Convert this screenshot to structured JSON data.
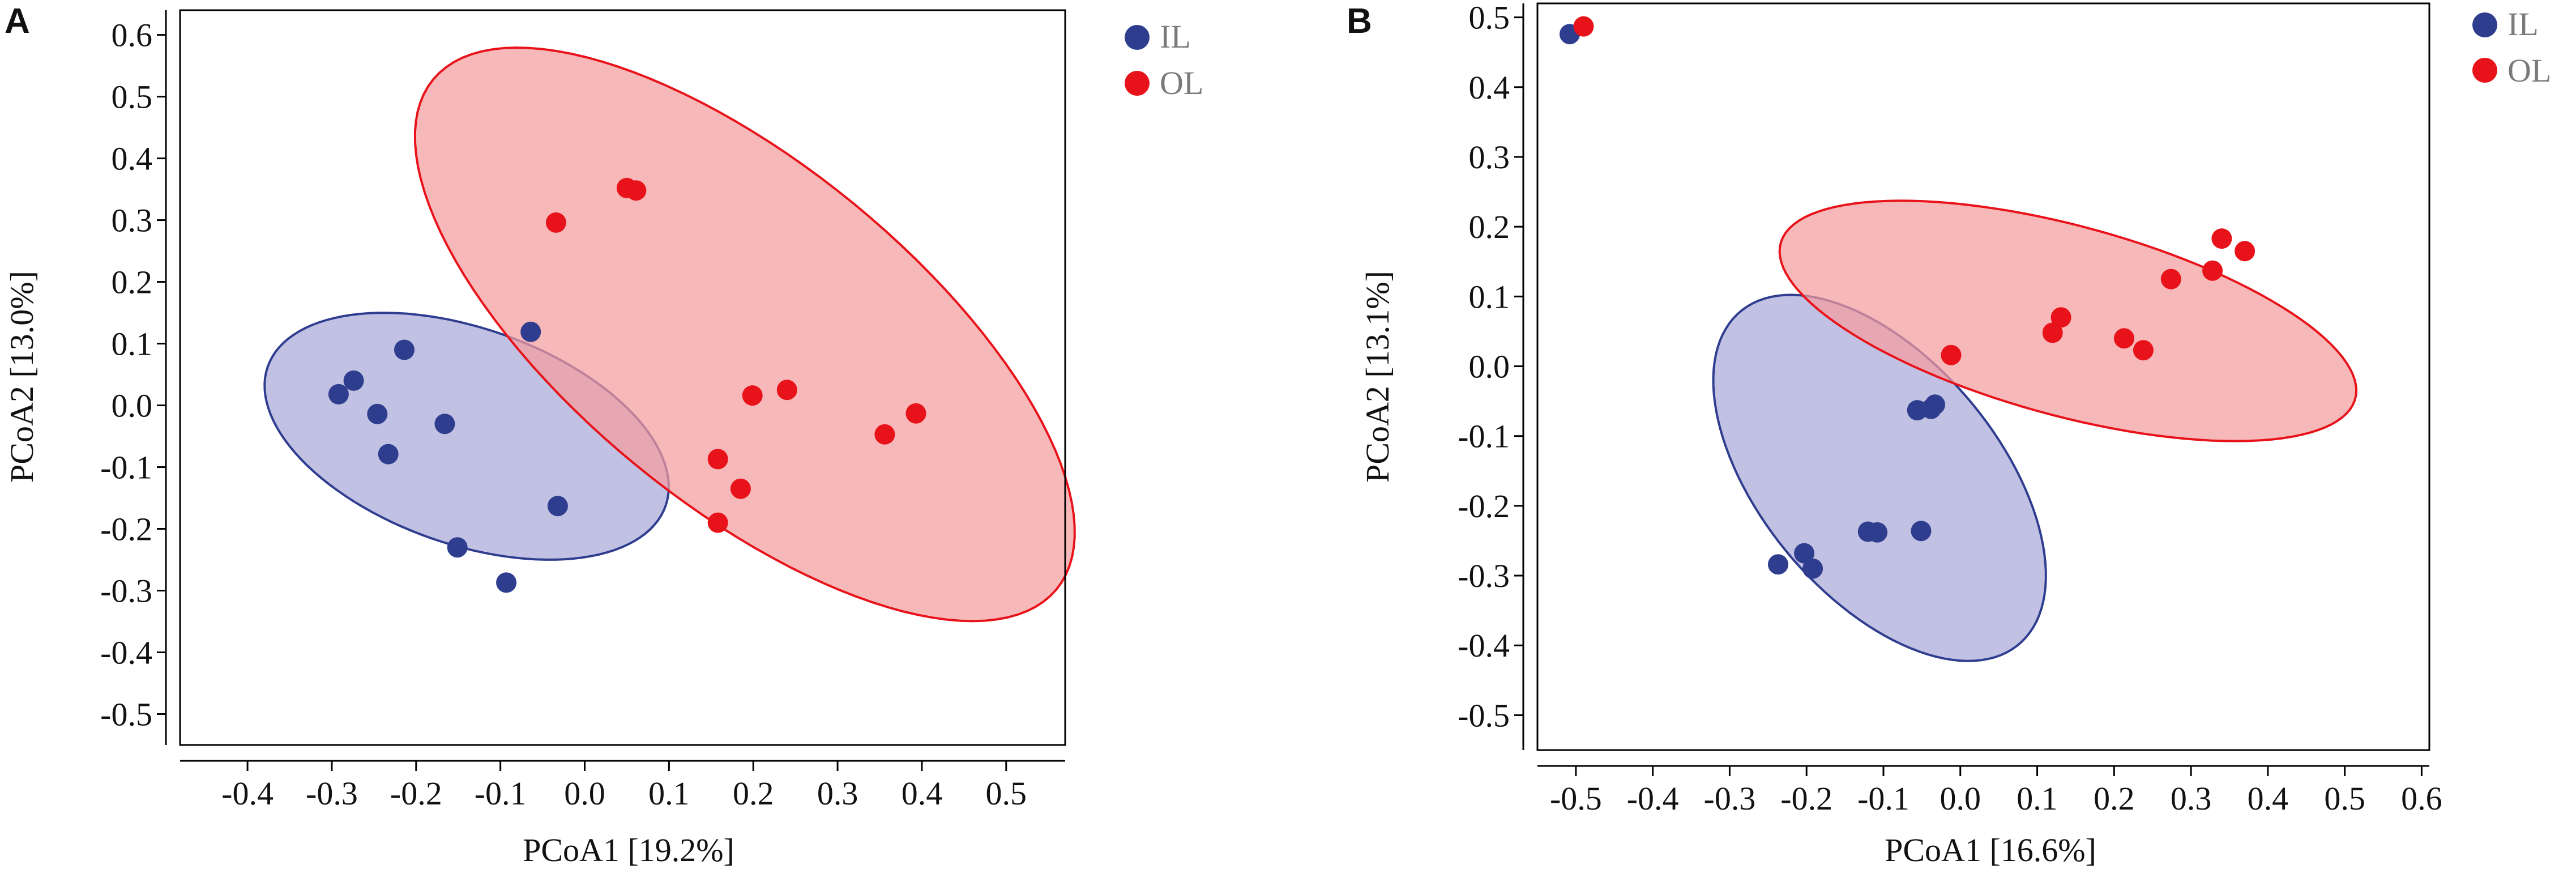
{
  "chart_data": [
    {
      "panel": "A",
      "type": "scatter",
      "xlabel": "PCoA1 [19.2%]",
      "ylabel": "PCoA2 [13.0%]",
      "xlim": [
        -0.48,
        0.57
      ],
      "ylim": [
        -0.55,
        0.64
      ],
      "xticks": [
        -0.4,
        -0.3,
        -0.2,
        -0.1,
        0,
        0.1,
        0.2,
        0.3,
        0.4,
        0.5
      ],
      "yticks": [
        -0.5,
        -0.4,
        -0.3,
        -0.2,
        -0.1,
        0,
        0.1,
        0.2,
        0.3,
        0.4,
        0.5,
        0.6
      ],
      "legend_position": "top-right-outside",
      "series": [
        {
          "name": "IL",
          "color": "#2f3d8f",
          "fill": "#a9a9d9",
          "points": [
            {
              "x": -0.292,
              "y": 0.018
            },
            {
              "x": -0.274,
              "y": 0.04
            },
            {
              "x": -0.246,
              "y": -0.014
            },
            {
              "x": -0.214,
              "y": 0.09
            },
            {
              "x": -0.233,
              "y": -0.079
            },
            {
              "x": -0.166,
              "y": -0.03
            },
            {
              "x": -0.064,
              "y": 0.119
            },
            {
              "x": -0.032,
              "y": -0.163
            },
            {
              "x": -0.151,
              "y": -0.23
            },
            {
              "x": -0.093,
              "y": -0.287
            }
          ],
          "ellipse": {
            "cx": -0.14,
            "cy": -0.05,
            "rx": 0.265,
            "ry": 0.165,
            "angle_deg": -33
          }
        },
        {
          "name": "OL",
          "color": "#e8131a",
          "fill": "#f49c9e",
          "points": [
            {
              "x": -0.034,
              "y": 0.296
            },
            {
              "x": 0.05,
              "y": 0.352
            },
            {
              "x": 0.061,
              "y": 0.348
            },
            {
              "x": 0.199,
              "y": 0.016
            },
            {
              "x": 0.24,
              "y": 0.025
            },
            {
              "x": 0.356,
              "y": -0.047
            },
            {
              "x": 0.393,
              "y": -0.013
            },
            {
              "x": 0.158,
              "y": -0.087
            },
            {
              "x": 0.185,
              "y": -0.135
            },
            {
              "x": 0.158,
              "y": -0.19
            }
          ],
          "ellipse": {
            "cx": 0.19,
            "cy": 0.115,
            "rx": 0.56,
            "ry": 0.235,
            "angle_deg": -52
          }
        }
      ]
    },
    {
      "panel": "B",
      "type": "scatter",
      "xlabel": "PCoA1 [16.6%]",
      "ylabel": "PCoA2 [13.1%]",
      "xlim": [
        -0.55,
        0.61
      ],
      "ylim": [
        -0.55,
        0.52
      ],
      "xticks": [
        -0.5,
        -0.4,
        -0.3,
        -0.2,
        -0.1,
        0,
        0.1,
        0.2,
        0.3,
        0.4,
        0.5,
        0.6
      ],
      "yticks": [
        -0.5,
        -0.4,
        -0.3,
        -0.2,
        -0.1,
        0,
        0.1,
        0.2,
        0.3,
        0.4,
        0.5
      ],
      "legend_position": "top-right-outside",
      "series": [
        {
          "name": "IL",
          "color": "#2f3d8f",
          "fill": "#a9a9d9",
          "points": [
            {
              "x": -0.508,
              "y": 0.476
            },
            {
              "x": -0.056,
              "y": -0.063
            },
            {
              "x": -0.038,
              "y": -0.061
            },
            {
              "x": -0.033,
              "y": -0.055
            },
            {
              "x": -0.237,
              "y": -0.284
            },
            {
              "x": -0.203,
              "y": -0.268
            },
            {
              "x": -0.192,
              "y": -0.29
            },
            {
              "x": -0.12,
              "y": -0.237
            },
            {
              "x": -0.108,
              "y": -0.238
            },
            {
              "x": -0.051,
              "y": -0.236
            }
          ],
          "ellipse": {
            "cx": -0.105,
            "cy": -0.16,
            "rx": 0.3,
            "ry": 0.16,
            "angle_deg": -55
          }
        },
        {
          "name": "OL",
          "color": "#e8131a",
          "fill": "#f49c9e",
          "points": [
            {
              "x": -0.49,
              "y": 0.487
            },
            {
              "x": -0.012,
              "y": 0.016
            },
            {
              "x": 0.12,
              "y": 0.048
            },
            {
              "x": 0.131,
              "y": 0.07
            },
            {
              "x": 0.213,
              "y": 0.04
            },
            {
              "x": 0.238,
              "y": 0.023
            },
            {
              "x": 0.274,
              "y": 0.125
            },
            {
              "x": 0.328,
              "y": 0.137
            },
            {
              "x": 0.34,
              "y": 0.183
            },
            {
              "x": 0.37,
              "y": 0.165
            }
          ],
          "ellipse": {
            "cx": 0.14,
            "cy": 0.065,
            "rx": 0.39,
            "ry": 0.135,
            "angle_deg": -17
          }
        }
      ]
    }
  ]
}
